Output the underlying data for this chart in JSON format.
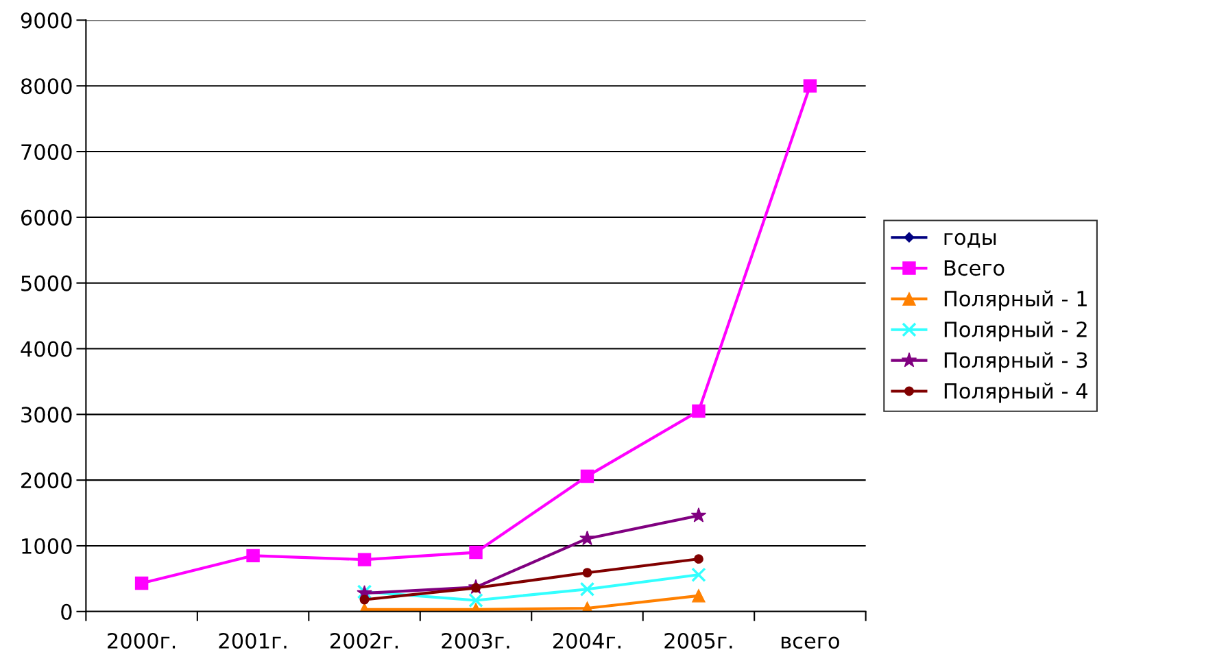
{
  "chart_data": {
    "type": "line",
    "categories": [
      "2000г.",
      "2001г.",
      "2002г.",
      "2003г.",
      "2004г.",
      "2005г.",
      "всего"
    ],
    "series": [
      {
        "name": "годы",
        "color": "#000080",
        "marker": "diamond",
        "values": [
          null,
          null,
          null,
          null,
          null,
          null,
          null
        ]
      },
      {
        "name": "Всего",
        "color": "#ff00ff",
        "marker": "square",
        "values": [
          430,
          850,
          790,
          900,
          2060,
          3050,
          8000
        ]
      },
      {
        "name": "Полярный - 1",
        "color": "#ff8000",
        "marker": "triangle",
        "values": [
          null,
          null,
          30,
          30,
          50,
          240,
          null
        ]
      },
      {
        "name": "Полярный - 2",
        "color": "#33ffff",
        "marker": "cross",
        "values": [
          null,
          null,
          300,
          170,
          340,
          560,
          null
        ]
      },
      {
        "name": "Полярный - 3",
        "color": "#800080",
        "marker": "star",
        "values": [
          null,
          null,
          280,
          370,
          1110,
          1460,
          null
        ]
      },
      {
        "name": "Полярный - 4",
        "color": "#800000",
        "marker": "circle",
        "values": [
          null,
          null,
          180,
          360,
          590,
          800,
          null
        ]
      }
    ],
    "ylim": [
      0,
      9000
    ],
    "yticks": [
      0,
      1000,
      2000,
      3000,
      4000,
      5000,
      6000,
      7000,
      8000,
      9000
    ],
    "grid": "y",
    "legend": "right"
  }
}
